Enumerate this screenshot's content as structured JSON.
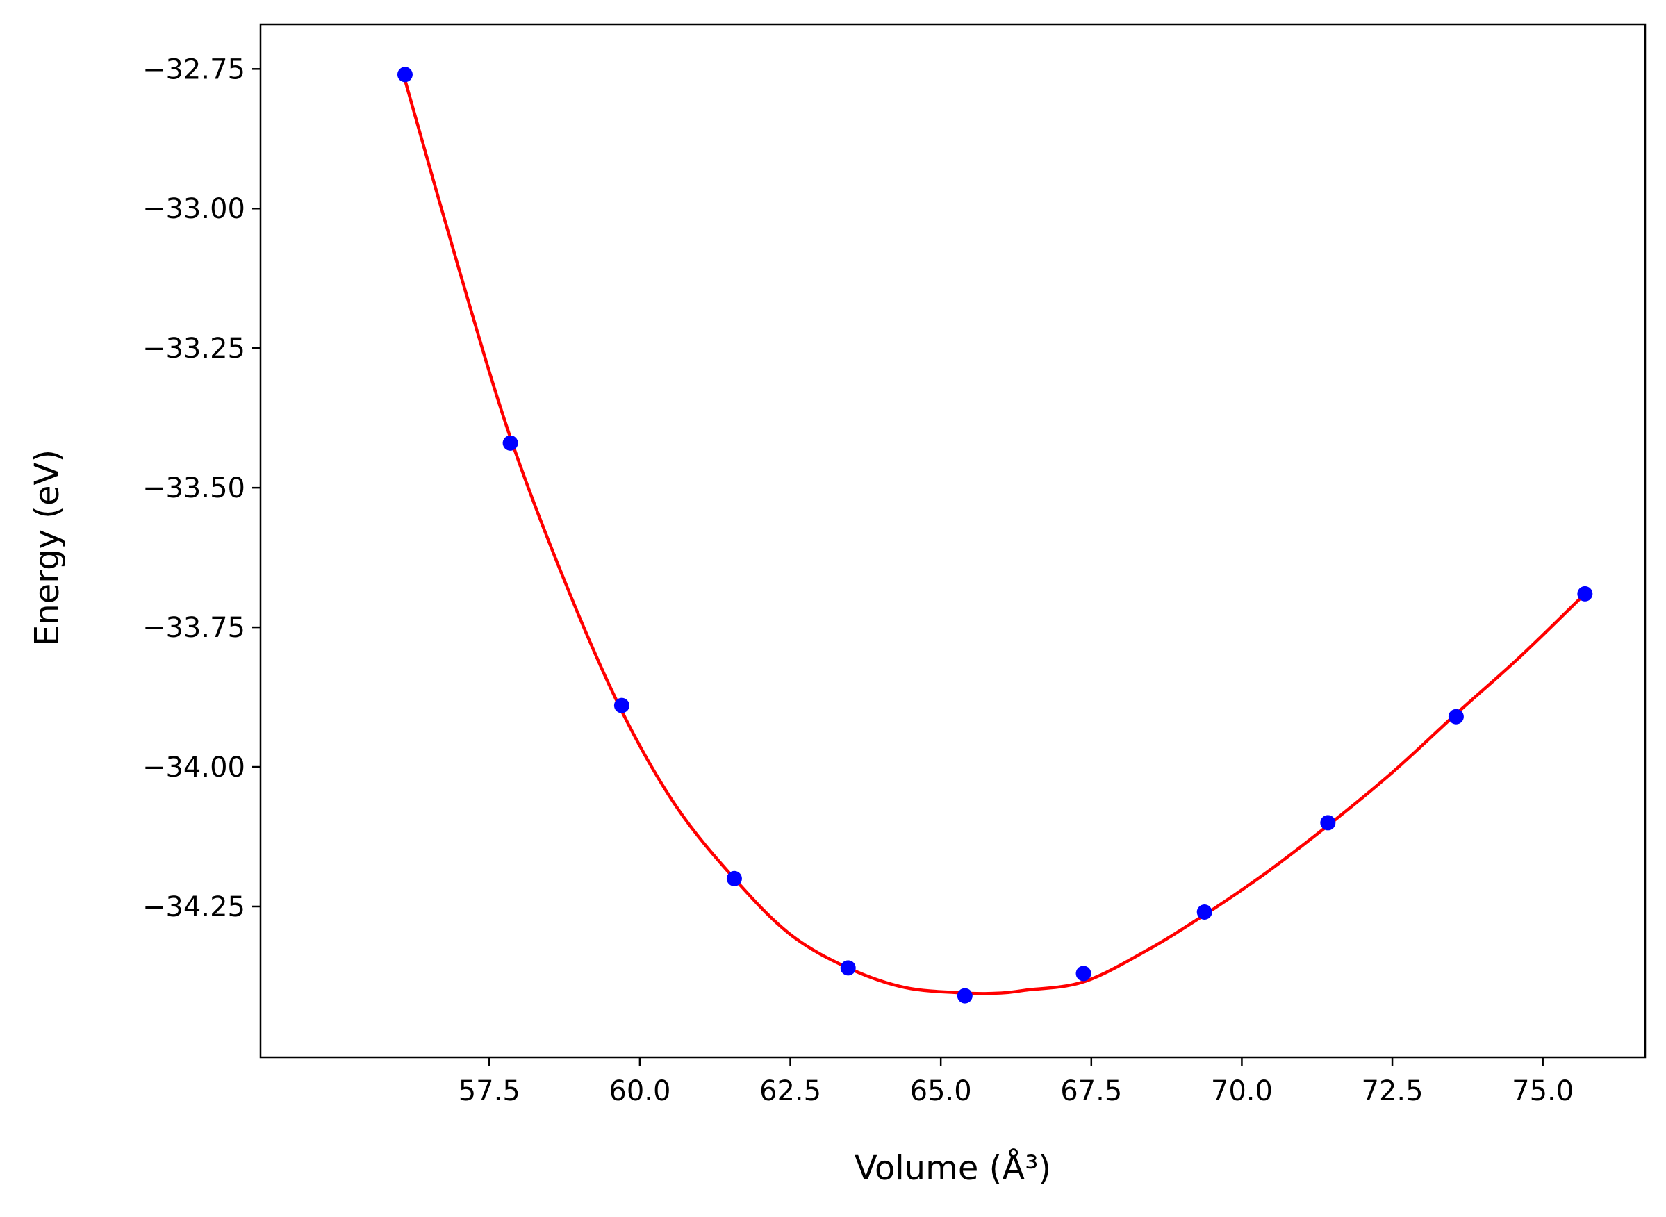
{
  "chart_data": {
    "type": "scatter",
    "title": "",
    "xlabel": "Volume (Å³)",
    "ylabel": "Energy (eV)",
    "xlim": [
      53.7,
      76.7
    ],
    "ylim": [
      -34.52,
      -32.67
    ],
    "xticks": [
      57.5,
      60.0,
      62.5,
      65.0,
      67.5,
      70.0,
      72.5,
      75.0
    ],
    "xtick_labels": [
      "57.5",
      "60.0",
      "62.5",
      "65.0",
      "67.5",
      "70.0",
      "72.5",
      "75.0"
    ],
    "yticks": [
      -32.75,
      -33.0,
      -33.25,
      -33.5,
      -33.75,
      -34.0,
      -34.25
    ],
    "ytick_labels": [
      "−32.75",
      "−33.00",
      "−33.25",
      "−33.50",
      "−33.75",
      "−34.00",
      "−34.25"
    ],
    "grid": false,
    "series": [
      {
        "kind": "points",
        "color": "#0000ff",
        "x": [
          56.1,
          57.85,
          59.7,
          61.57,
          63.46,
          65.4,
          67.37,
          69.38,
          71.43,
          73.56,
          75.7
        ],
        "y": [
          -32.76,
          -33.42,
          -33.89,
          -34.2,
          -34.36,
          -34.41,
          -34.37,
          -34.26,
          -34.1,
          -33.91,
          -33.69
        ]
      },
      {
        "kind": "fit",
        "color": "#ff0000",
        "x": [
          56.1,
          57.0,
          57.85,
          58.8,
          59.7,
          60.6,
          61.57,
          62.5,
          63.46,
          64.4,
          65.4,
          66.0,
          66.4,
          67.37,
          68.4,
          69.38,
          70.4,
          71.43,
          72.5,
          73.56,
          74.6,
          75.7
        ],
        "y": [
          -32.77,
          -33.11,
          -33.41,
          -33.68,
          -33.9,
          -34.07,
          -34.2,
          -34.3,
          -34.36,
          -34.395,
          -34.405,
          -34.405,
          -34.4,
          -34.385,
          -34.33,
          -34.265,
          -34.19,
          -34.105,
          -34.01,
          -33.905,
          -33.805,
          -33.69
        ]
      }
    ]
  }
}
